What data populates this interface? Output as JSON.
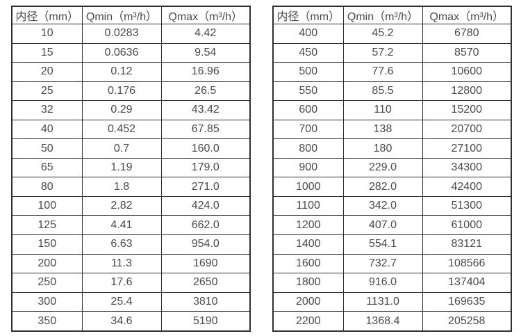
{
  "page": {
    "background": "#ffffff",
    "text_color": "#4a4a4a",
    "border_color": "#2f2f2f"
  },
  "tables": [
    {
      "name": "flow-table-small-diameters",
      "headers": [
        "内径（mm）",
        "Qmin（m³/h）",
        "Qmax（m³/h）"
      ],
      "rows": [
        [
          "10",
          "0.0283",
          "4.42"
        ],
        [
          "15",
          "0.0636",
          "9.54"
        ],
        [
          "20",
          "0.12",
          "16.96"
        ],
        [
          "25",
          "0.176",
          "26.5"
        ],
        [
          "32",
          "0.29",
          "43.42"
        ],
        [
          "40",
          "0.452",
          "67.85"
        ],
        [
          "50",
          "0.7",
          "160.0"
        ],
        [
          "65",
          "1.19",
          "179.0"
        ],
        [
          "80",
          "1.8",
          "271.0"
        ],
        [
          "100",
          "2.82",
          "424.0"
        ],
        [
          "125",
          "4.41",
          "662.0"
        ],
        [
          "150",
          "6.63",
          "954.0"
        ],
        [
          "200",
          "11.3",
          "1690"
        ],
        [
          "250",
          "17.6",
          "2650"
        ],
        [
          "300",
          "25.4",
          "3810"
        ],
        [
          "350",
          "34.6",
          "5190"
        ]
      ]
    },
    {
      "name": "flow-table-large-diameters",
      "headers": [
        "内径（mm）",
        "Qmin（m³/h）",
        "Qmax（m³/h）"
      ],
      "rows": [
        [
          "400",
          "45.2",
          "6780"
        ],
        [
          "450",
          "57.2",
          "8570"
        ],
        [
          "500",
          "77.6",
          "10600"
        ],
        [
          "550",
          "85.5",
          "12800"
        ],
        [
          "600",
          "110",
          "15200"
        ],
        [
          "700",
          "138",
          "20700"
        ],
        [
          "800",
          "180",
          "27100"
        ],
        [
          "900",
          "229.0",
          "34300"
        ],
        [
          "1000",
          "282.0",
          "42400"
        ],
        [
          "1100",
          "342.0",
          "51300"
        ],
        [
          "1200",
          "407.0",
          "61000"
        ],
        [
          "1400",
          "554.1",
          "83121"
        ],
        [
          "1600",
          "732.7",
          "108566"
        ],
        [
          "1800",
          "916.0",
          "137404"
        ],
        [
          "2000",
          "1131.0",
          "169635"
        ],
        [
          "2200",
          "1368.4",
          "205258"
        ]
      ]
    }
  ]
}
